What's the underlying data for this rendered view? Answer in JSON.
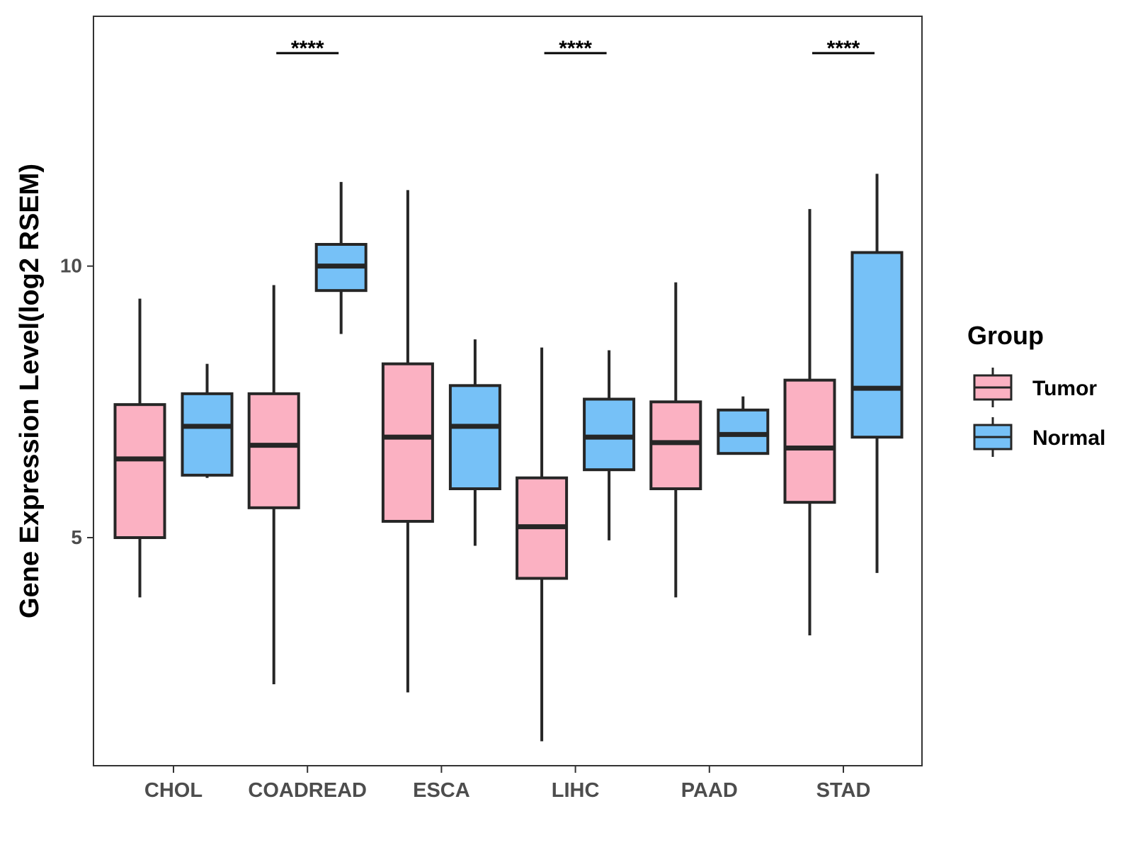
{
  "chart_data": {
    "type": "boxplot",
    "title": "",
    "xlabel": "",
    "ylabel": "Gene Expression Level(log2 RSEM)",
    "ylim": [
      0.8,
      14.6
    ],
    "yticks": [
      5,
      10
    ],
    "categories": [
      "CHOL",
      "COADREAD",
      "ESCA",
      "LIHC",
      "PAAD",
      "STAD"
    ],
    "legend": {
      "title": "Group",
      "position": "right",
      "entries": [
        {
          "name": "Tumor",
          "color": "#fbb1c2"
        },
        {
          "name": "Normal",
          "color": "#76c1f7"
        }
      ]
    },
    "series": [
      {
        "name": "Tumor",
        "color": "#fbb1c2",
        "boxes": [
          {
            "category": "CHOL",
            "whisker_low": 3.9,
            "q1": 5.0,
            "median": 6.45,
            "q3": 7.45,
            "whisker_high": 9.4
          },
          {
            "category": "COADREAD",
            "whisker_low": 2.3,
            "q1": 5.55,
            "median": 6.7,
            "q3": 7.65,
            "whisker_high": 9.65
          },
          {
            "category": "ESCA",
            "whisker_low": 2.15,
            "q1": 5.3,
            "median": 6.85,
            "q3": 8.2,
            "whisker_high": 11.4
          },
          {
            "category": "LIHC",
            "whisker_low": 1.25,
            "q1": 4.25,
            "median": 5.2,
            "q3": 6.1,
            "whisker_high": 8.5
          },
          {
            "category": "PAAD",
            "whisker_low": 3.9,
            "q1": 5.9,
            "median": 6.75,
            "q3": 7.5,
            "whisker_high": 9.7
          },
          {
            "category": "STAD",
            "whisker_low": 3.2,
            "q1": 5.65,
            "median": 6.65,
            "q3": 7.9,
            "whisker_high": 11.05
          }
        ]
      },
      {
        "name": "Normal",
        "color": "#76c1f7",
        "boxes": [
          {
            "category": "CHOL",
            "whisker_low": 6.1,
            "q1": 6.15,
            "median": 7.05,
            "q3": 7.65,
            "whisker_high": 8.2
          },
          {
            "category": "COADREAD",
            "whisker_low": 8.75,
            "q1": 9.55,
            "median": 10.0,
            "q3": 10.4,
            "whisker_high": 11.55
          },
          {
            "category": "ESCA",
            "whisker_low": 4.85,
            "q1": 5.9,
            "median": 7.05,
            "q3": 7.8,
            "whisker_high": 8.65
          },
          {
            "category": "LIHC",
            "whisker_low": 4.95,
            "q1": 6.25,
            "median": 6.85,
            "q3": 7.55,
            "whisker_high": 8.45
          },
          {
            "category": "PAAD",
            "whisker_low": 6.55,
            "q1": 6.55,
            "median": 6.9,
            "q3": 7.35,
            "whisker_high": 7.6
          },
          {
            "category": "STAD",
            "whisker_low": 4.35,
            "q1": 6.85,
            "median": 7.75,
            "q3": 10.25,
            "whisker_high": 11.7
          }
        ]
      }
    ],
    "significance": [
      {
        "category": "COADREAD",
        "label": "****"
      },
      {
        "category": "LIHC",
        "label": "****"
      },
      {
        "category": "STAD",
        "label": "****"
      }
    ]
  }
}
